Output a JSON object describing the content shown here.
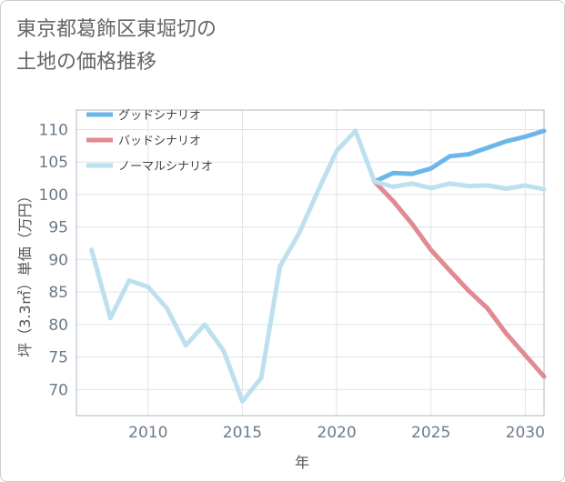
{
  "title": "東京都葛飾区東堀切の\n土地の価格推移",
  "chart_data": {
    "type": "line",
    "xlabel": "年",
    "ylabel": "坪（3.3㎡）単価（万円）",
    "xlim": [
      2006.2,
      2031
    ],
    "ylim": [
      66,
      113
    ],
    "xticks": [
      2010,
      2015,
      2020,
      2025,
      2030
    ],
    "yticks": [
      70,
      75,
      80,
      85,
      90,
      95,
      100,
      105,
      110
    ],
    "grid": true,
    "legend_position": "top-left",
    "series": [
      {
        "name": "グッドシナリオ",
        "color": "#6cb6ea",
        "x": [
          2022,
          2023,
          2024,
          2025,
          2026,
          2027,
          2028,
          2029,
          2030,
          2031
        ],
        "values": [
          102.0,
          103.3,
          103.2,
          104.0,
          105.9,
          106.2,
          107.2,
          108.2,
          108.9,
          109.8
        ]
      },
      {
        "name": "バッドシナリオ",
        "color": "#e08a93",
        "x": [
          2022,
          2023,
          2024,
          2025,
          2026,
          2027,
          2028,
          2029,
          2030,
          2031
        ],
        "values": [
          102.0,
          99.0,
          95.5,
          91.5,
          88.3,
          85.2,
          82.5,
          78.6,
          75.3,
          72.0
        ]
      },
      {
        "name": "ノーマルシナリオ",
        "color": "#bde0ee",
        "x": [
          2007,
          2008,
          2009,
          2010,
          2011,
          2012,
          2013,
          2014,
          2015,
          2016,
          2017,
          2018,
          2019,
          2020,
          2021,
          2022,
          2023,
          2024,
          2025,
          2026,
          2027,
          2028,
          2029,
          2030,
          2031
        ],
        "values": [
          91.5,
          81.0,
          86.8,
          85.8,
          82.5,
          76.8,
          80.0,
          76.0,
          68.2,
          71.8,
          89.0,
          94.0,
          100.5,
          106.7,
          109.8,
          102.0,
          101.2,
          101.7,
          101.0,
          101.7,
          101.3,
          101.4,
          100.9,
          101.4,
          100.8
        ]
      }
    ]
  }
}
